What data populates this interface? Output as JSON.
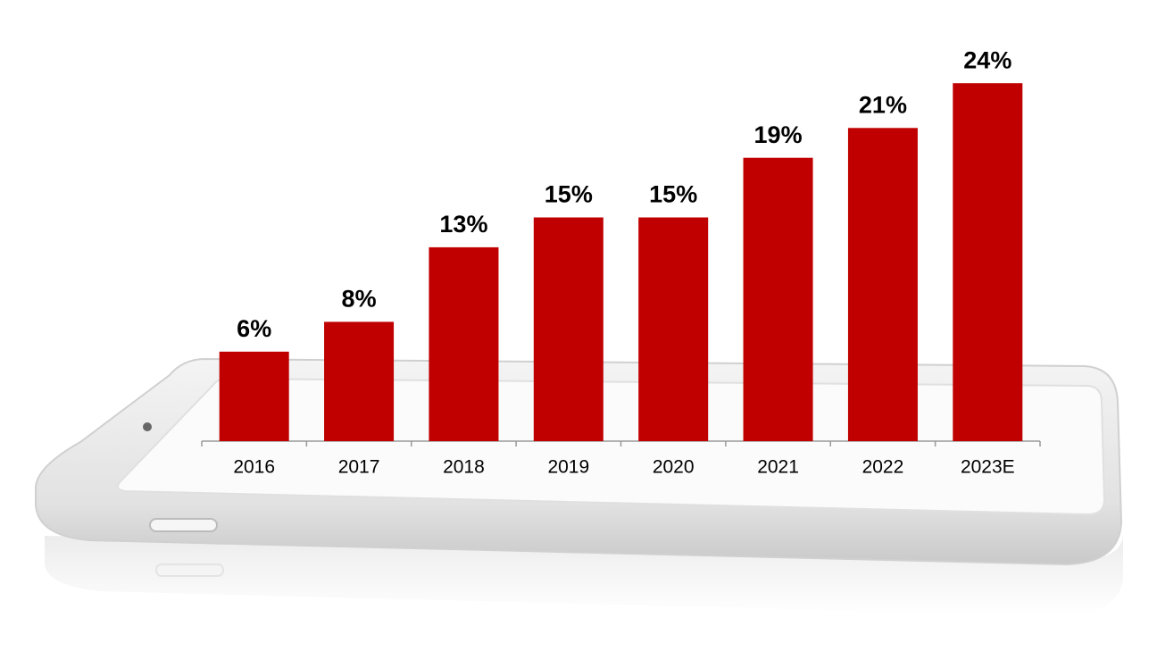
{
  "chart_data": {
    "type": "bar",
    "categories": [
      "2016",
      "2017",
      "2018",
      "2019",
      "2020",
      "2021",
      "2022",
      "2023E"
    ],
    "values": [
      6,
      8,
      13,
      15,
      15,
      19,
      21,
      24
    ],
    "value_labels": [
      "6%",
      "8%",
      "13%",
      "15%",
      "15%",
      "19%",
      "21%",
      "24%"
    ],
    "color": "#c00000"
  }
}
